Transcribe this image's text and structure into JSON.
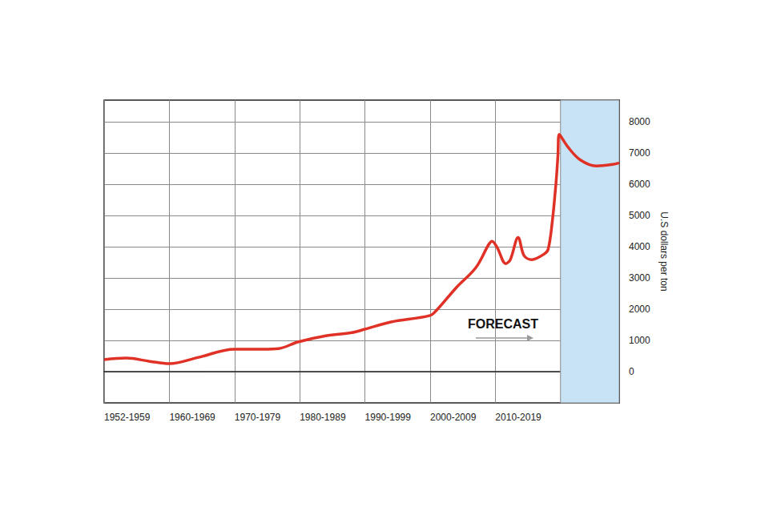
{
  "chart_data": {
    "type": "line",
    "y_label": "U.S dollars per ton",
    "annotations": [
      "FORECAST"
    ],
    "x": [
      1950,
      1953.4,
      1957,
      1960,
      1964.5,
      1970,
      1974.4,
      1976.8,
      1979.7,
      1984,
      1988,
      1990,
      1994,
      2000,
      2001,
      2004,
      2007,
      2009,
      2009.5,
      2010.3,
      2011.6,
      2012.3,
      2013.5,
      2014.4,
      2015.6,
      2017.5,
      2018.1,
      2018.7,
      2019.3,
      2019.6,
      2019.8,
      2021.2,
      2023,
      2025.5,
      2028,
      2029
    ],
    "values": [
      385,
      435,
      330,
      255,
      460,
      720,
      720,
      740,
      950,
      1150,
      1250,
      1360,
      1590,
      1800,
      1970,
      2690,
      3330,
      4080,
      4180,
      3970,
      3460,
      3590,
      4300,
      3720,
      3590,
      3770,
      3920,
      4740,
      6030,
      6920,
      7600,
      7180,
      6790,
      6590,
      6640,
      6690
    ],
    "color": "#e03127",
    "forecast_region": [
      2020,
      2029
    ],
    "forecast_color": "#c8e3f5",
    "xlim": [
      1950,
      2029
    ],
    "xticks": [
      {
        "value": 1950,
        "label": "1952-1959"
      },
      {
        "value": 1960,
        "label": "1960-1969"
      },
      {
        "value": 1970,
        "label": "1970-1979"
      },
      {
        "value": 1980,
        "label": "1980-1989"
      },
      {
        "value": 1990,
        "label": "1990-1999"
      },
      {
        "value": 2000,
        "label": "2000-2009"
      },
      {
        "value": 2010,
        "label": "2010-2019"
      }
    ],
    "ylim": [
      -1000,
      8700
    ],
    "yticks": [
      0,
      1000,
      2000,
      3000,
      4000,
      5000,
      6000,
      7000,
      8000
    ],
    "grid": true
  }
}
